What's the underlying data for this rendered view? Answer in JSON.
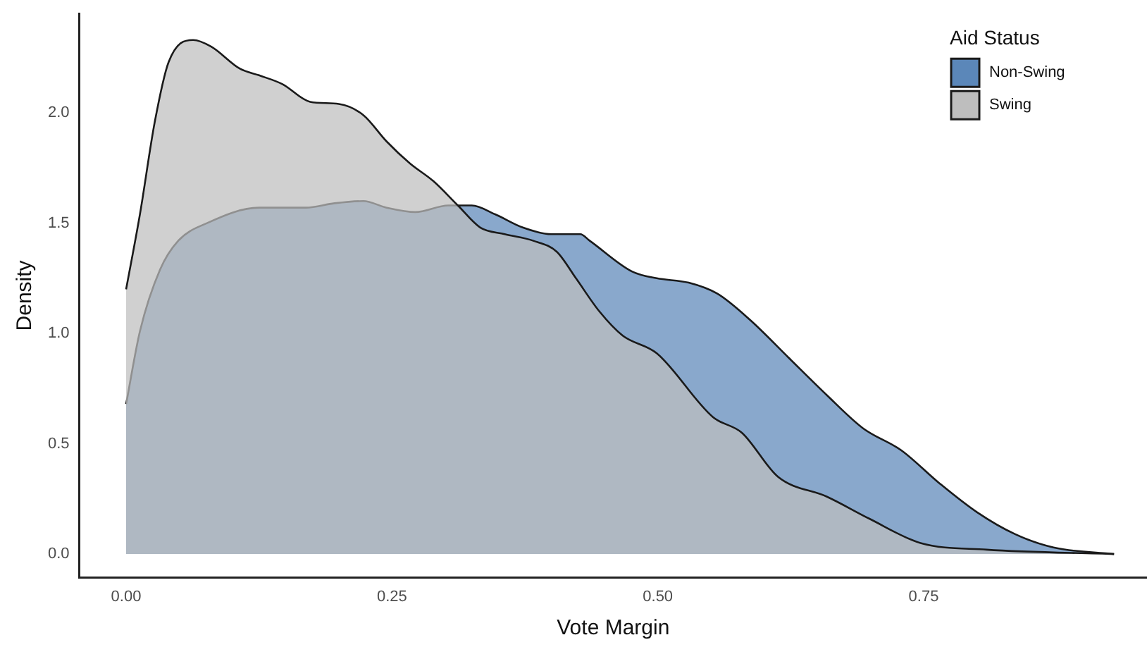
{
  "chart_data": {
    "type": "area",
    "xlabel": "Vote Margin",
    "ylabel": "Density",
    "legend_title": "Aid Status",
    "legend": "top right",
    "grid": false,
    "xlim": [
      -0.044,
      0.96
    ],
    "xticks": [
      {
        "value": 0,
        "label": "0.00"
      },
      {
        "value": 0.25,
        "label": "0.25"
      },
      {
        "value": 0.5,
        "label": "0.50"
      },
      {
        "value": 0.75,
        "label": "0.75"
      }
    ],
    "ylim": [
      -0.107,
      2.45
    ],
    "yticks": [
      {
        "value": 0,
        "label": "0.0"
      },
      {
        "value": 0.5,
        "label": "0.5"
      },
      {
        "value": 1,
        "label": "1.0"
      },
      {
        "value": 1.5,
        "label": "1.5"
      },
      {
        "value": 2,
        "label": "2.0"
      }
    ],
    "series": [
      {
        "name": "Non-Swing",
        "color": "#5b87b9",
        "x": [
          0,
          0.013,
          0.032,
          0.049,
          0.076,
          0.125,
          0.169,
          0.196,
          0.223,
          0.245,
          0.272,
          0.303,
          0.325,
          0.347,
          0.373,
          0.4,
          0.427,
          0.436,
          0.476,
          0.499,
          0.529,
          0.556,
          0.587,
          0.623,
          0.659,
          0.693,
          0.729,
          0.765,
          0.8,
          0.836,
          0.872,
          0.929
        ],
        "values": [
          0.68,
          1.01,
          1.29,
          1.42,
          1.5,
          1.57,
          1.57,
          1.59,
          1.6,
          1.57,
          1.55,
          1.58,
          1.58,
          1.54,
          1.48,
          1.45,
          1.45,
          1.42,
          1.28,
          1.25,
          1.23,
          1.18,
          1.06,
          0.89,
          0.72,
          0.57,
          0.47,
          0.32,
          0.19,
          0.09,
          0.03,
          0
        ]
      },
      {
        "name": "Swing",
        "color": "#bebebe",
        "x": [
          0,
          0.013,
          0.027,
          0.04,
          0.063,
          0.08,
          0.107,
          0.125,
          0.147,
          0.173,
          0.2,
          0.223,
          0.245,
          0.267,
          0.289,
          0.312,
          0.333,
          0.356,
          0.383,
          0.405,
          0.423,
          0.445,
          0.467,
          0.499,
          0.552,
          0.579,
          0.613,
          0.659,
          0.699,
          0.747,
          0.809,
          0.929
        ],
        "values": [
          1.2,
          1.54,
          1.96,
          2.23,
          2.33,
          2.3,
          2.2,
          2.17,
          2.13,
          2.05,
          2.04,
          1.99,
          1.87,
          1.77,
          1.69,
          1.58,
          1.48,
          1.45,
          1.42,
          1.37,
          1.25,
          1.1,
          0.99,
          0.91,
          0.62,
          0.55,
          0.35,
          0.26,
          0.16,
          0.05,
          0.02,
          0
        ]
      }
    ]
  }
}
